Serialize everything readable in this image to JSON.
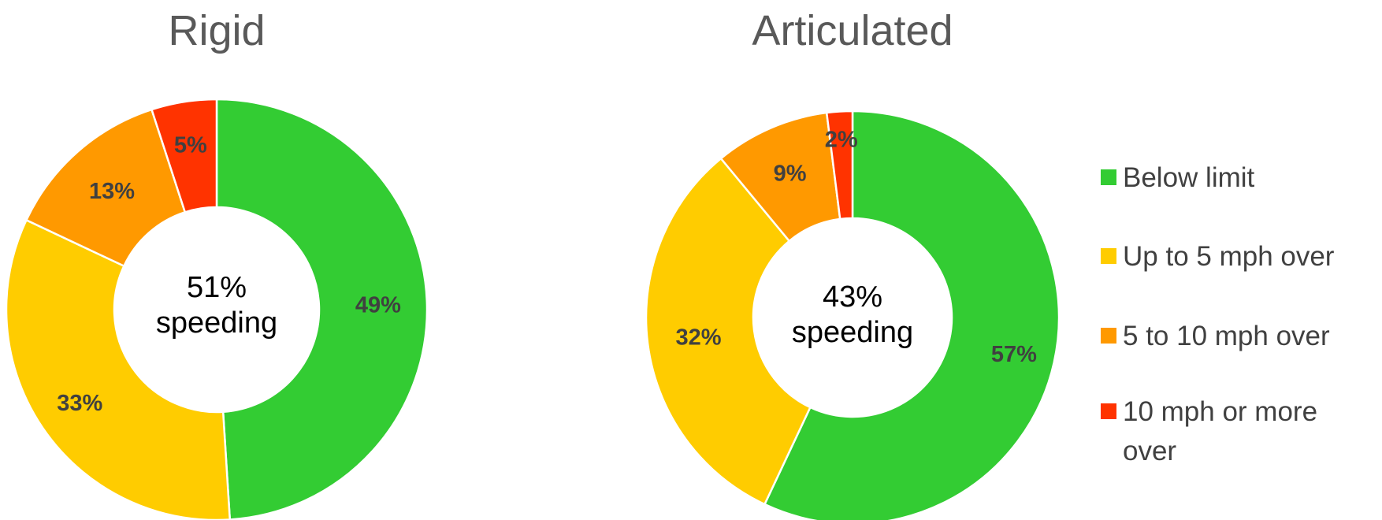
{
  "chart_data": [
    {
      "type": "pie",
      "variant": "donut",
      "title": "Rigid",
      "center_label": [
        "51%",
        "speeding"
      ],
      "categories": [
        "Below limit",
        "Up to 5 mph over",
        "5 to 10 mph over",
        "10 mph or more over"
      ],
      "values": [
        49,
        33,
        13,
        5
      ],
      "data_labels": [
        "49%",
        "33%",
        "13%",
        "5%"
      ]
    },
    {
      "type": "pie",
      "variant": "donut",
      "title": "Articulated",
      "center_label": [
        "43%",
        "speeding"
      ],
      "categories": [
        "Below limit",
        "Up to 5 mph over",
        "5 to 10 mph over",
        "10 mph or more over"
      ],
      "values": [
        57,
        32,
        9,
        2
      ],
      "data_labels": [
        "57%",
        "32%",
        "9%",
        "2%"
      ]
    }
  ],
  "legend": {
    "placement": "right",
    "items": [
      {
        "label": "Below limit",
        "color": "#33cc33"
      },
      {
        "label": "Up to 5 mph over",
        "color": "#ffcc00"
      },
      {
        "label": "5 to 10 mph over",
        "color": "#ff9900"
      },
      {
        "label": "10 mph or more over",
        "color": "#ff3300",
        "lines": [
          "10 mph or more",
          "over"
        ]
      }
    ]
  }
}
